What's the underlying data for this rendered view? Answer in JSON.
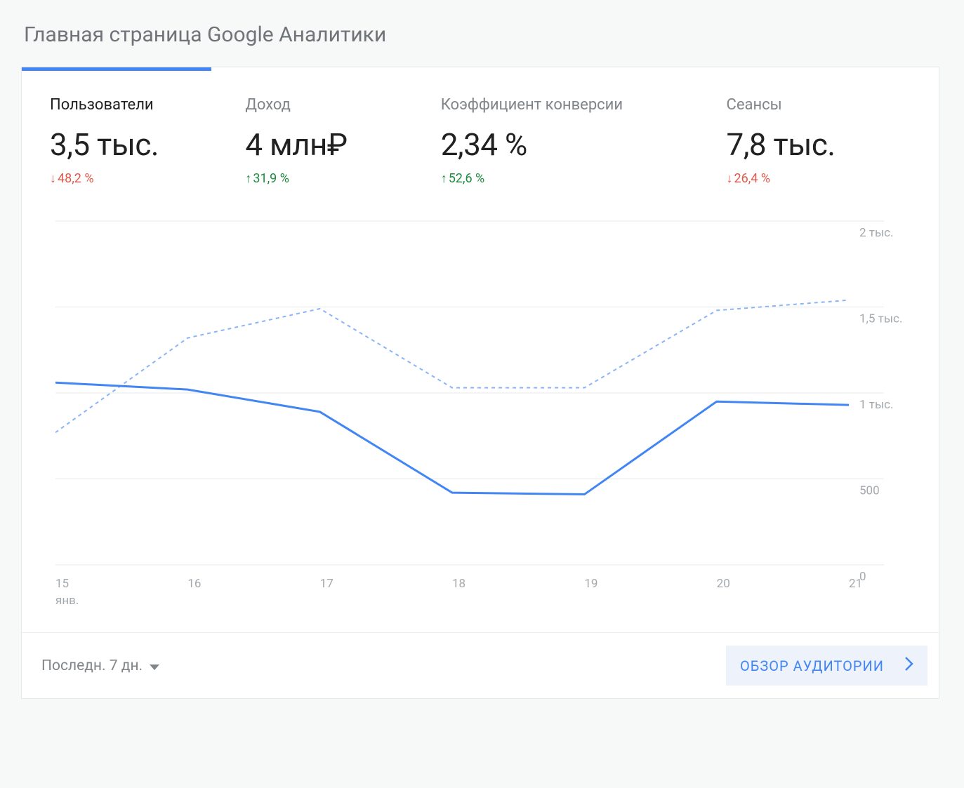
{
  "page_title": "Главная страница Google Аналитики",
  "metrics": [
    {
      "label": "Пользователи",
      "value": "3,5 тыс.",
      "change": "48,2 %",
      "direction": "down",
      "active": true
    },
    {
      "label": "Доход",
      "value": "4 млн₽",
      "change": "31,9 %",
      "direction": "up",
      "active": false
    },
    {
      "label": "Коэффициент конверсии",
      "value": "2,34 %",
      "change": "52,6 %",
      "direction": "up",
      "active": false
    },
    {
      "label": "Сеансы",
      "value": "7,8 тыс.",
      "change": "26,4 %",
      "direction": "down",
      "active": false
    }
  ],
  "chart": {
    "type": "line",
    "background_color": "#ffffff",
    "grid_color": "#e8e8e8",
    "solid_line_color": "#4285f4",
    "dashed_line_color": "#8ab4f8",
    "solid_line_width": 3,
    "dashed_line_width": 2,
    "dash_pattern": "5,5",
    "y_axis": {
      "min": 0,
      "max": 2000,
      "ticks": [
        {
          "v": 0,
          "label": "0"
        },
        {
          "v": 500,
          "label": "500"
        },
        {
          "v": 1000,
          "label": "1 тыс."
        },
        {
          "v": 1500,
          "label": "1,5 тыс."
        },
        {
          "v": 2000,
          "label": "2 тыс."
        }
      ]
    },
    "x_axis": {
      "ticks": [
        "15",
        "16",
        "17",
        "18",
        "19",
        "20",
        "21"
      ],
      "sublabel": "янв."
    },
    "series_solid": [
      1060,
      1020,
      890,
      420,
      410,
      950,
      930
    ],
    "series_dashed": [
      770,
      1320,
      1490,
      1030,
      1030,
      1480,
      1540
    ]
  },
  "footer": {
    "range_label": "Последн. 7 дн.",
    "audience_button": "ОБЗОР АУДИТОРИИ"
  },
  "colors": {
    "page_bg": "#f7f8f8",
    "card_bg": "#ffffff",
    "title_text": "#6f7478",
    "active_text": "#212121",
    "muted_text": "#808589",
    "axis_text": "#a4a9ad",
    "accent_blue": "#4285f4",
    "change_up": "#1e8e3e",
    "change_down": "#e45a4d",
    "button_bg": "#eef3fb"
  }
}
